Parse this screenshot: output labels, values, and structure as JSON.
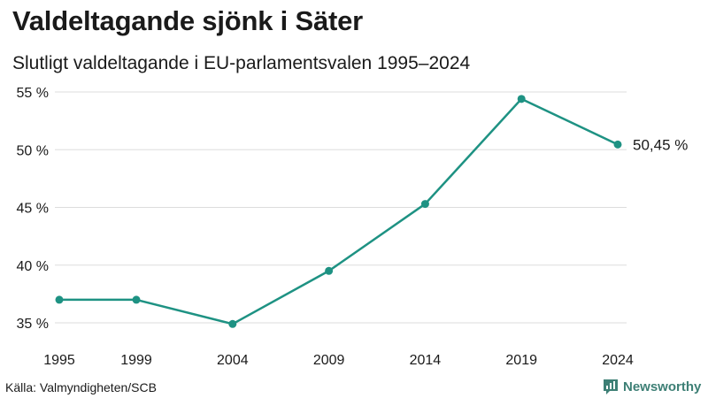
{
  "title": "Valdeltagande sjönk i Säter",
  "subtitle": "Slutligt valdeltagande i EU-parlamentsvalen 1995–2024",
  "source": "Källa: Valmyndigheten/SCB",
  "brand": {
    "name": "Newsworthy",
    "icon": "bar-chart-speech-icon"
  },
  "colors": {
    "line": "#1e9283",
    "grid": "#dddddd",
    "text": "#1a1a1a",
    "brand": "#3d7f75"
  },
  "chart_data": {
    "type": "line",
    "title": "Valdeltagande sjönk i Säter",
    "subtitle": "Slutligt valdeltagande i EU-parlamentsvalen 1995–2024",
    "x": [
      1995,
      1999,
      2004,
      2009,
      2014,
      2019,
      2024
    ],
    "x_tick_labels": [
      "1995",
      "1999",
      "2004",
      "2009",
      "2014",
      "2019",
      "2024"
    ],
    "series": [
      {
        "name": "Valdeltagande",
        "values": [
          37.0,
          37.0,
          34.9,
          39.5,
          45.3,
          54.4,
          50.45
        ]
      }
    ],
    "y_ticks": [
      35,
      40,
      45,
      50,
      55
    ],
    "y_tick_labels": [
      "35 %",
      "40 %",
      "45 %",
      "50 %",
      "55 %"
    ],
    "ylim": [
      35,
      55
    ],
    "grid": true,
    "xlabel": "",
    "ylabel": "",
    "end_label": "50,45 %"
  }
}
